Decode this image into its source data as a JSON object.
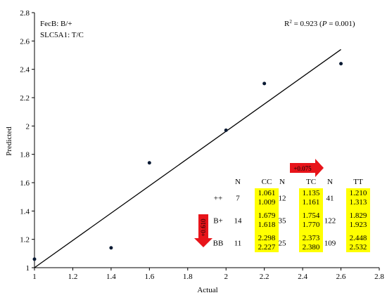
{
  "chart_data": {
    "type": "scatter",
    "xlabel": "Actual",
    "ylabel": "Predicted",
    "xlim": [
      1,
      2.8
    ],
    "ylim": [
      1,
      2.8
    ],
    "xticks": [
      "1",
      "1.2",
      "1.4",
      "1.6",
      "1.8",
      "2",
      "2.2",
      "2.4",
      "2.6",
      "2.8"
    ],
    "yticks": [
      "1",
      "1.2",
      "1.4",
      "1.6",
      "1.8",
      "2",
      "2.2",
      "2.4",
      "2.6",
      "2.8"
    ],
    "grid": false,
    "points": [
      {
        "x": 1.0,
        "y": 1.06
      },
      {
        "x": 1.4,
        "y": 1.14
      },
      {
        "x": 1.6,
        "y": 1.74
      },
      {
        "x": 2.0,
        "y": 1.97
      },
      {
        "x": 2.2,
        "y": 2.3
      },
      {
        "x": 2.6,
        "y": 2.44
      }
    ],
    "regression_line": {
      "x": [
        1.0,
        2.6
      ],
      "y": [
        1.0,
        2.54
      ]
    },
    "annotations": {
      "line1": "FecB: B/+",
      "line2": "SLC5A1: T/C",
      "r2_prefix": "R",
      "r2_sup": "2",
      "r2_mid": " = 0.923 (",
      "r2_p": "P",
      "r2_suffix": " = 0.001)"
    },
    "arrows": {
      "horizontal": {
        "label": "+0.075"
      },
      "vertical": {
        "label": "+0.610"
      }
    },
    "table": {
      "columns": [
        {
          "header": "N",
          "kind": "n"
        },
        {
          "header": "CC",
          "kind": "v"
        },
        {
          "header": "N",
          "kind": "n"
        },
        {
          "header": "TC",
          "kind": "v"
        },
        {
          "header": "N",
          "kind": "n"
        },
        {
          "header": "TT",
          "kind": "v"
        }
      ],
      "rows": [
        {
          "label": "++",
          "n": [
            "7",
            "12",
            "41"
          ],
          "values": [
            [
              "1.061",
              "1.009"
            ],
            [
              "1.135",
              "1.161"
            ],
            [
              "1.210",
              "1.313"
            ]
          ]
        },
        {
          "label": "B+",
          "n": [
            "14",
            "35",
            "122"
          ],
          "values": [
            [
              "1.679",
              "1.618"
            ],
            [
              "1.754",
              "1.770"
            ],
            [
              "1.829",
              "1.923"
            ]
          ]
        },
        {
          "label": "BB",
          "n": [
            "11",
            "25",
            "109"
          ],
          "values": [
            [
              "2.298",
              "2.227"
            ],
            [
              "2.373",
              "2.380"
            ],
            [
              "2.448",
              "2.532"
            ]
          ]
        }
      ]
    },
    "colors": {
      "axis": "#000000",
      "points": "#0a1a33",
      "line": "#000000",
      "highlight": "#ffff00",
      "arrow": "#e8141a"
    }
  }
}
